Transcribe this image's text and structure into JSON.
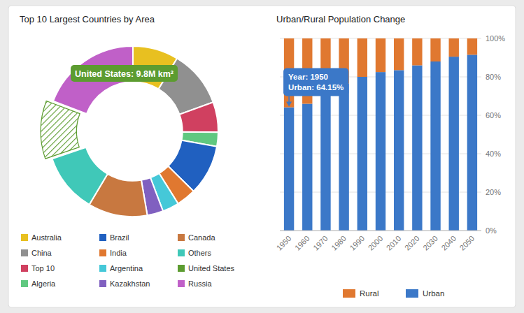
{
  "chart_data": [
    {
      "type": "pie",
      "title": "Top 10 Largest Countries by Area",
      "categories": [
        "Australia",
        "China",
        "Top 10",
        "Algeria",
        "Brazil",
        "India",
        "Argentina",
        "Kazakhstan",
        "Canada",
        "Others",
        "United States",
        "Russia"
      ],
      "values": [
        7.7,
        9.6,
        5.1,
        2.4,
        8.5,
        3.3,
        2.8,
        2.7,
        10.0,
        10.0,
        9.8,
        17.1
      ],
      "colors": [
        "#E8C020",
        "#909090",
        "#D04060",
        "#60C880",
        "#2060C0",
        "#E07830",
        "#45C8D8",
        "#8060C0",
        "#C87840",
        "#40C8B8",
        "#5C9C30",
        "#C060C8"
      ],
      "annotations": [
        "United States: 9.8M km²"
      ],
      "legend": "bottom"
    },
    {
      "type": "bar",
      "title": "Urban/Rural Population Change",
      "stacked": true,
      "categories": [
        "1950",
        "1960",
        "1970",
        "1980",
        "1990",
        "2000",
        "2010",
        "2020",
        "2030",
        "2040",
        "2050"
      ],
      "series": [
        {
          "name": "Urban",
          "color": "#3B78C8",
          "values": [
            64.15,
            66.0,
            75.0,
            76.5,
            80.0,
            82.5,
            83.5,
            86.0,
            88.0,
            90.5,
            91.5
          ]
        },
        {
          "name": "Rural",
          "color": "#E07830",
          "values": [
            35.85,
            34.0,
            25.0,
            23.5,
            20.0,
            17.5,
            16.5,
            14.0,
            12.0,
            9.5,
            8.5
          ]
        }
      ],
      "ylim": [
        0,
        100
      ],
      "yticks": [
        {
          "value": 0,
          "label": "0%"
        },
        {
          "value": 20,
          "label": "20%"
        },
        {
          "value": 40,
          "label": "40%"
        },
        {
          "value": 60,
          "label": "60%"
        },
        {
          "value": 80,
          "label": "80%"
        },
        {
          "value": 100,
          "label": "100%"
        }
      ],
      "grid": true,
      "annotations": [
        "Year: 1950",
        "Urban: 64.15%"
      ],
      "legend": "bottom"
    }
  ]
}
